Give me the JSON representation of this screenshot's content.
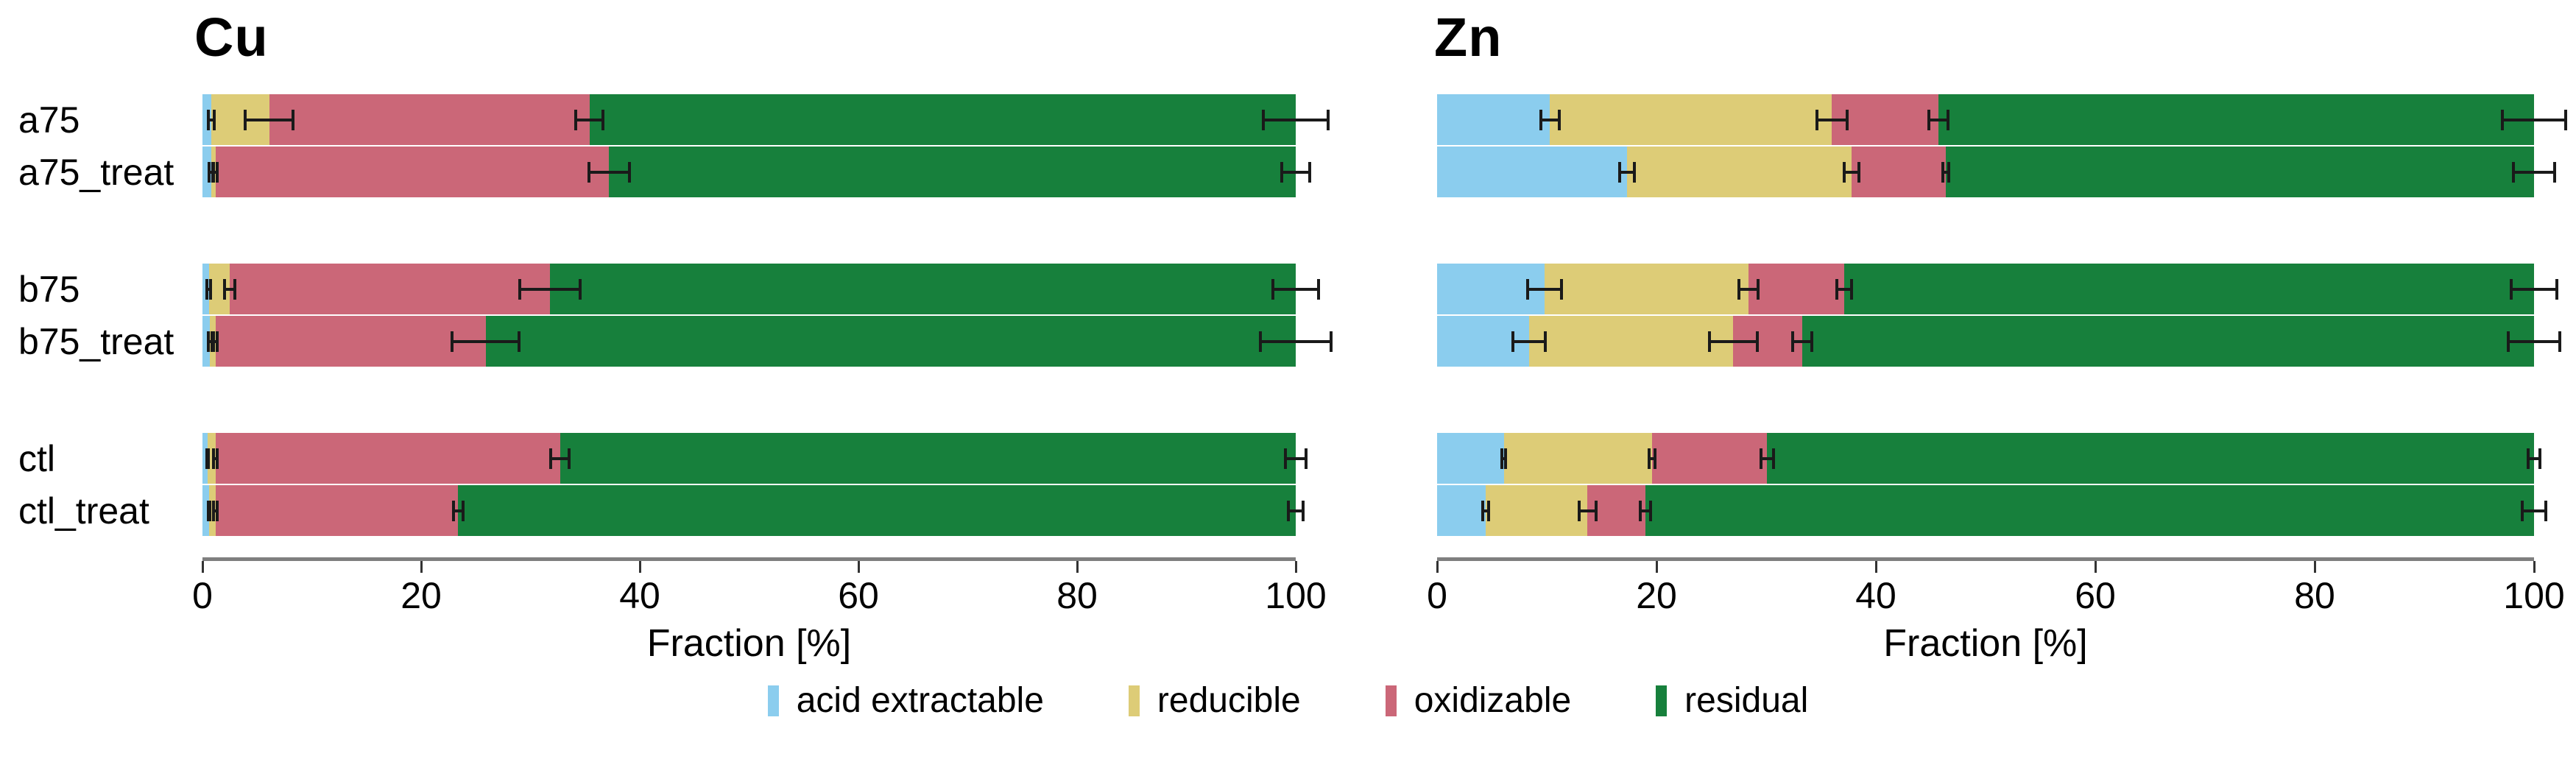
{
  "figure": {
    "background": "#ffffff",
    "axis_color": "#7f7f7f",
    "error_bar_color": "#1a1a1a"
  },
  "legend": {
    "items": [
      {
        "label": "acid extractable",
        "color": "#8bcdee"
      },
      {
        "label": "reducible",
        "color": "#ddcc77"
      },
      {
        "label": "oxidizable",
        "color": "#cb6778"
      },
      {
        "label": "residual",
        "color": "#17803c"
      }
    ]
  },
  "chart_data": [
    {
      "type": "bar",
      "orientation": "horizontal",
      "stacked": true,
      "title": "Cu",
      "xlabel": "Fraction [%]",
      "xlim": [
        0,
        100
      ],
      "xticks": [
        0,
        20,
        40,
        60,
        80,
        100
      ],
      "grid": false,
      "categories": [
        "a75",
        "a75_treat",
        "b75",
        "b75_treat",
        "ctl",
        "ctl_treat"
      ],
      "series": [
        {
          "name": "acid extractable",
          "color": "#8bcdee",
          "values": [
            0.8,
            0.8,
            0.6,
            0.7,
            0.5,
            0.6
          ],
          "errors": [
            0.4,
            0.3,
            0.3,
            0.3,
            0.2,
            0.2
          ]
        },
        {
          "name": "reducible",
          "color": "#ddcc77",
          "values": [
            5.3,
            0.4,
            1.9,
            0.5,
            0.7,
            0.6
          ],
          "errors": [
            2.3,
            0.3,
            0.6,
            0.3,
            0.3,
            0.3
          ]
        },
        {
          "name": "oxidizable",
          "color": "#cb6778",
          "values": [
            29.3,
            36.0,
            29.3,
            24.7,
            31.5,
            22.2
          ],
          "errors": [
            1.4,
            2.0,
            2.9,
            3.2,
            1.0,
            0.6
          ]
        },
        {
          "name": "residual",
          "color": "#17803c",
          "values": [
            64.6,
            62.8,
            68.2,
            74.1,
            67.3,
            76.6
          ],
          "errors": [
            3.1,
            1.4,
            2.2,
            3.4,
            1.1,
            0.8
          ]
        }
      ]
    },
    {
      "type": "bar",
      "orientation": "horizontal",
      "stacked": true,
      "title": "Zn",
      "xlabel": "Fraction [%]",
      "xlim": [
        0,
        100
      ],
      "xticks": [
        0,
        20,
        40,
        60,
        80,
        100
      ],
      "grid": false,
      "categories": [
        "a75",
        "a75_treat",
        "b75",
        "b75_treat",
        "ctl",
        "ctl_treat"
      ],
      "series": [
        {
          "name": "acid extractable",
          "color": "#8bcdee",
          "values": [
            10.3,
            17.3,
            9.8,
            8.4,
            6.1,
            4.4
          ],
          "errors": [
            1.0,
            0.8,
            1.7,
            1.6,
            0.3,
            0.4
          ]
        },
        {
          "name": "reducible",
          "color": "#ddcc77",
          "values": [
            25.7,
            20.5,
            18.6,
            18.6,
            13.5,
            9.3
          ],
          "errors": [
            1.5,
            0.8,
            1.0,
            2.3,
            0.4,
            0.9
          ]
        },
        {
          "name": "oxidizable",
          "color": "#cb6778",
          "values": [
            9.7,
            8.6,
            8.7,
            6.3,
            10.5,
            5.3
          ],
          "errors": [
            1.0,
            0.4,
            0.8,
            1.0,
            0.7,
            0.6
          ]
        },
        {
          "name": "residual",
          "color": "#17803c",
          "values": [
            54.3,
            53.6,
            62.9,
            66.7,
            69.9,
            81.0
          ],
          "errors": [
            3.0,
            2.0,
            2.2,
            2.5,
            0.7,
            1.2
          ]
        }
      ]
    }
  ]
}
